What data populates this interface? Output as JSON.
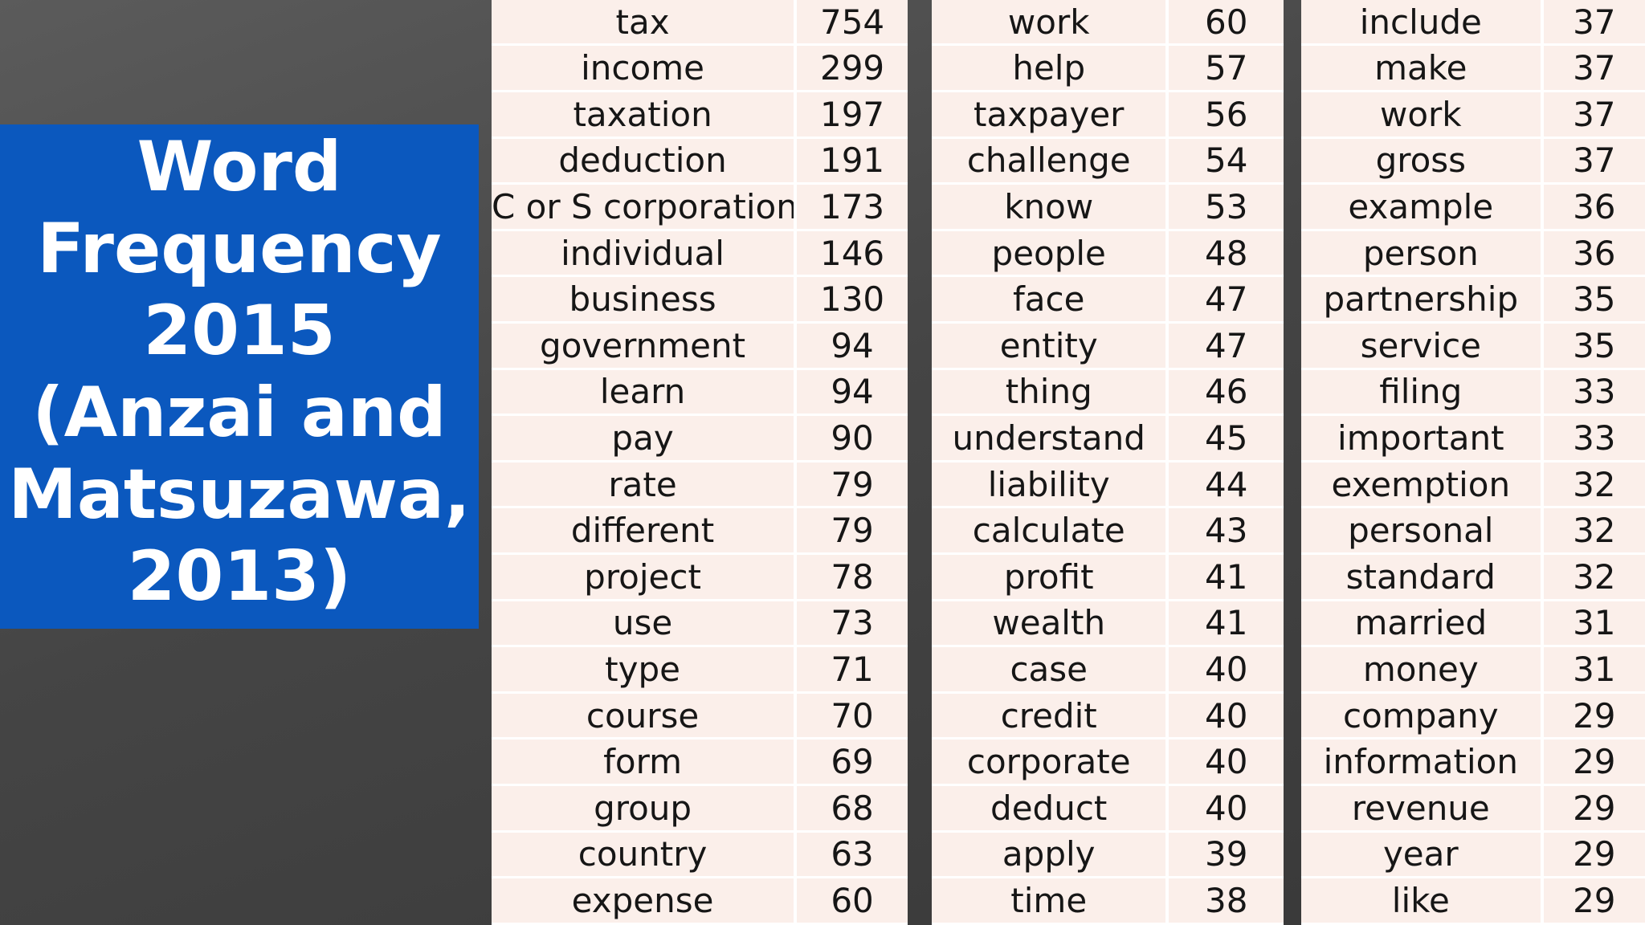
{
  "title": "Word\nFrequency\n2015\n(Anzai and\nMatsuzawa,\n2013)",
  "tables": [
    {
      "rows": [
        [
          "tax",
          "754"
        ],
        [
          "income",
          "299"
        ],
        [
          "taxation",
          "197"
        ],
        [
          "deduction",
          "191"
        ],
        [
          "C or S corporation",
          "173"
        ],
        [
          "individual",
          "146"
        ],
        [
          "business",
          "130"
        ],
        [
          "government",
          "94"
        ],
        [
          "learn",
          "94"
        ],
        [
          "pay",
          "90"
        ],
        [
          "rate",
          "79"
        ],
        [
          "different",
          "79"
        ],
        [
          "project",
          "78"
        ],
        [
          "use",
          "73"
        ],
        [
          "type",
          "71"
        ],
        [
          "course",
          "70"
        ],
        [
          "form",
          "69"
        ],
        [
          "group",
          "68"
        ],
        [
          "country",
          "63"
        ],
        [
          "expense",
          "60"
        ]
      ]
    },
    {
      "rows": [
        [
          "work",
          "60"
        ],
        [
          "help",
          "57"
        ],
        [
          "taxpayer",
          "56"
        ],
        [
          "challenge",
          "54"
        ],
        [
          "know",
          "53"
        ],
        [
          "people",
          "48"
        ],
        [
          "face",
          "47"
        ],
        [
          "entity",
          "47"
        ],
        [
          "thing",
          "46"
        ],
        [
          "understand",
          "45"
        ],
        [
          "liability",
          "44"
        ],
        [
          "calculate",
          "43"
        ],
        [
          "profit",
          "41"
        ],
        [
          "wealth",
          "41"
        ],
        [
          "case",
          "40"
        ],
        [
          "credit",
          "40"
        ],
        [
          "corporate",
          "40"
        ],
        [
          "deduct",
          "40"
        ],
        [
          "apply",
          "39"
        ],
        [
          "time",
          "38"
        ]
      ]
    },
    {
      "rows": [
        [
          "include",
          "37"
        ],
        [
          "make",
          "37"
        ],
        [
          "work",
          "37"
        ],
        [
          "gross",
          "37"
        ],
        [
          "example",
          "36"
        ],
        [
          "person",
          "36"
        ],
        [
          "partnership",
          "35"
        ],
        [
          "service",
          "35"
        ],
        [
          "filing",
          "33"
        ],
        [
          "important",
          "33"
        ],
        [
          "exemption",
          "32"
        ],
        [
          "personal",
          "32"
        ],
        [
          "standard",
          "32"
        ],
        [
          "married",
          "31"
        ],
        [
          "money",
          "31"
        ],
        [
          "company",
          "29"
        ],
        [
          "information",
          "29"
        ],
        [
          "revenue",
          "29"
        ],
        [
          "year",
          "29"
        ],
        [
          "like",
          "29"
        ]
      ]
    }
  ]
}
